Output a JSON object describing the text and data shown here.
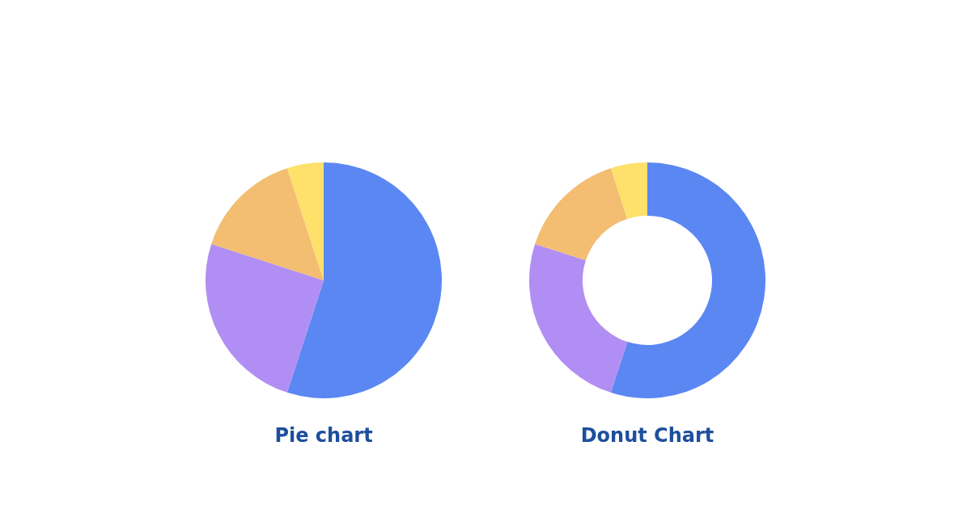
{
  "chart_data": [
    {
      "type": "pie",
      "title": "Pie chart",
      "categories": [
        null,
        null,
        null,
        null
      ],
      "values": [
        55,
        25,
        15,
        5
      ],
      "colors": [
        "#5b87f3",
        "#b18ef3",
        "#f3bd72",
        "#fde16b"
      ]
    },
    {
      "type": "donut",
      "title": "Donut Chart",
      "categories": [
        null,
        null,
        null,
        null
      ],
      "values": [
        55,
        25,
        15,
        5
      ],
      "colors": [
        "#5b87f3",
        "#b18ef3",
        "#f3bd72",
        "#fde16b"
      ]
    }
  ]
}
